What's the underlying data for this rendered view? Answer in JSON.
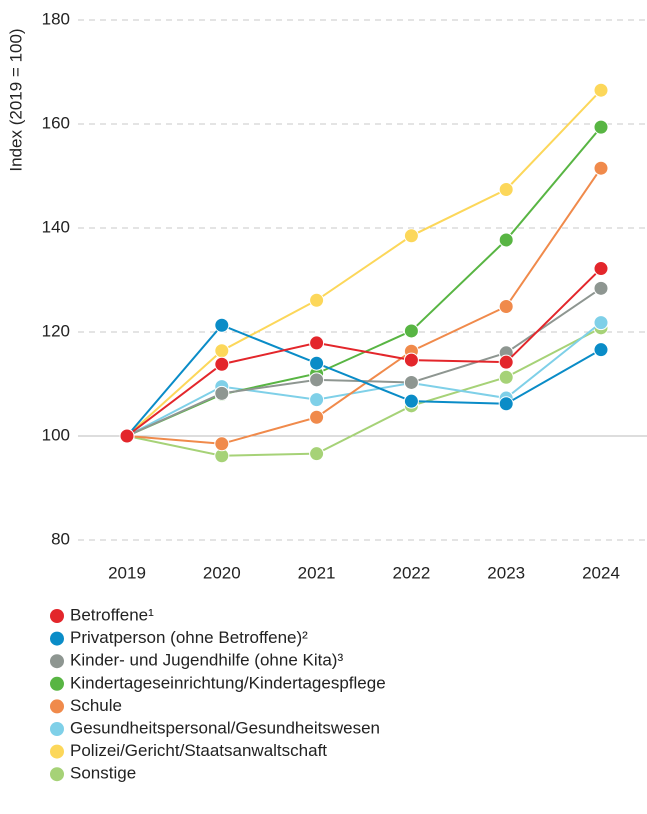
{
  "chart_data": {
    "type": "line",
    "y_label": "Index (2019 = 100)",
    "categories": [
      "2019",
      "2020",
      "2021",
      "2022",
      "2023",
      "2024"
    ],
    "series": [
      {
        "name": "Betroffene¹",
        "color": "#e3262b",
        "values": [
          100,
          113.8,
          117.9,
          114.6,
          114.2,
          132.2
        ]
      },
      {
        "name": "Privatperson (ohne Betroffene)²",
        "color": "#0a8cc7",
        "values": [
          100,
          121.3,
          114,
          106.7,
          106.2,
          116.6
        ]
      },
      {
        "name": "Kinder- und Jugendhilfe (ohne Kita)³",
        "color": "#8e9691",
        "values": [
          100,
          108.2,
          110.8,
          110.3,
          116,
          128.4
        ]
      },
      {
        "name": "Kindertageseinrichtung/Kindertagespflege",
        "color": "#58b543",
        "values": [
          100,
          108,
          112,
          120.2,
          137.7,
          159.4
        ]
      },
      {
        "name": "Schule",
        "color": "#f08a4b",
        "values": [
          100,
          98.5,
          103.6,
          116.3,
          124.9,
          151.5
        ]
      },
      {
        "name": "Gesundheitspersonal/Gesundheitswesen",
        "color": "#7fd0e8",
        "values": [
          100,
          109.5,
          107,
          110.2,
          107.3,
          121.8
        ]
      },
      {
        "name": "Polizei/Gericht/Staatsanwaltschaft",
        "color": "#fcd75a",
        "values": [
          100,
          116.4,
          126.1,
          138.5,
          147.4,
          166.5
        ]
      },
      {
        "name": "Sonstige",
        "color": "#a6d277",
        "values": [
          100,
          96.2,
          96.6,
          105.8,
          111.3,
          120.8
        ]
      }
    ],
    "ylim": [
      80,
      180
    ],
    "yticks": [
      80,
      100,
      120,
      140,
      160,
      180
    ],
    "grid": true,
    "baseline": 100,
    "legend": "bottom"
  }
}
